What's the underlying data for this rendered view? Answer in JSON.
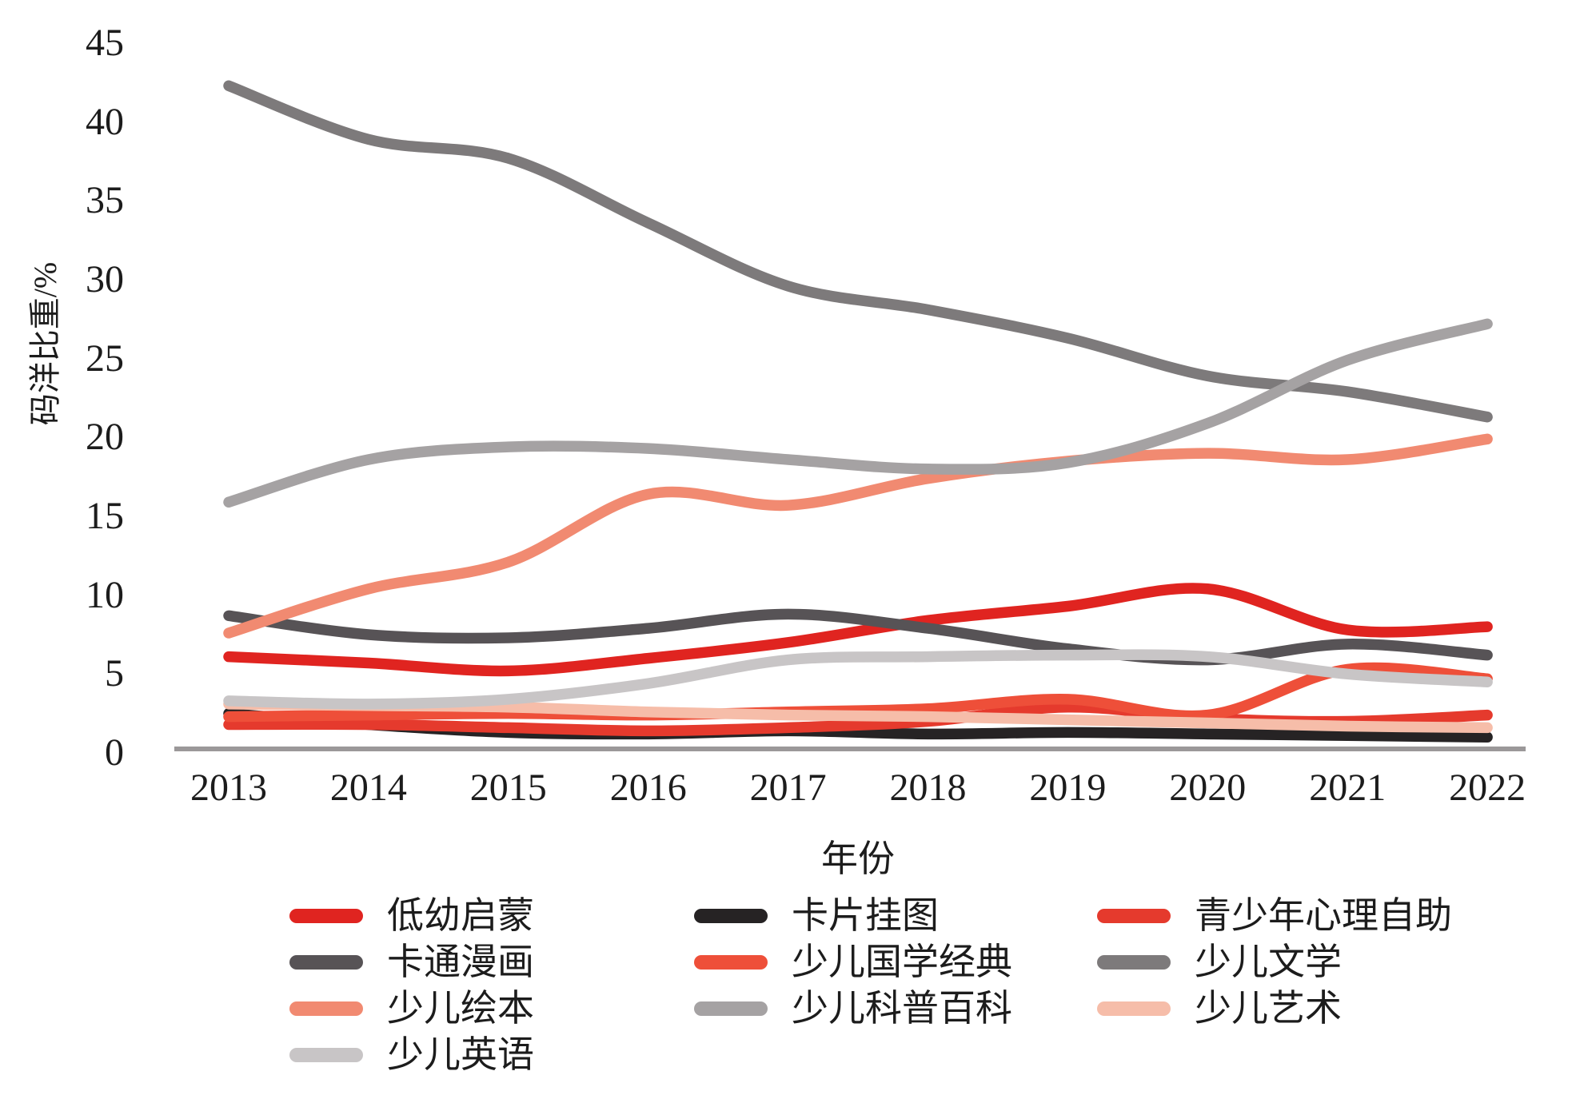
{
  "chart_data": {
    "type": "line",
    "title": "",
    "xlabel": "年份",
    "ylabel": "码洋比重/%",
    "x_categories": [
      "2013",
      "2014",
      "2015",
      "2016",
      "2017",
      "2018",
      "2019",
      "2020",
      "2021",
      "2022"
    ],
    "y_ticks": [
      0,
      5,
      10,
      15,
      20,
      25,
      30,
      35,
      40,
      45
    ],
    "ylim": [
      0,
      45
    ],
    "grid": false,
    "smooth_lines": true,
    "legend_position": "bottom",
    "axis_line_color": "#9b9899",
    "series": [
      {
        "name": "低幼启蒙",
        "color": "#e02420",
        "values": [
          6.1,
          5.7,
          5.2,
          6.0,
          7.0,
          8.4,
          9.3,
          10.4,
          7.8,
          8.0
        ]
      },
      {
        "name": "卡片挂图",
        "color": "#262324",
        "values": [
          2.5,
          1.8,
          1.3,
          1.2,
          1.4,
          1.2,
          1.3,
          1.2,
          1.1,
          1.0
        ]
      },
      {
        "name": "青少年心理自助",
        "color": "#e53a2d",
        "values": [
          1.8,
          1.8,
          1.6,
          1.4,
          1.6,
          2.0,
          2.9,
          2.2,
          2.0,
          2.4
        ]
      },
      {
        "name": "卡通漫画",
        "color": "#575356",
        "values": [
          8.7,
          7.5,
          7.3,
          7.9,
          8.8,
          7.9,
          6.6,
          5.9,
          6.9,
          6.2
        ]
      },
      {
        "name": "少儿国学经典",
        "color": "#ee4f39",
        "values": [
          2.3,
          2.4,
          2.5,
          2.4,
          2.6,
          2.8,
          3.4,
          2.4,
          5.3,
          4.7
        ]
      },
      {
        "name": "少儿文学",
        "color": "#7d7a7b",
        "values": [
          42.3,
          38.9,
          37.7,
          33.6,
          29.6,
          28.1,
          26.3,
          23.9,
          22.9,
          21.3
        ]
      },
      {
        "name": "少儿绘本",
        "color": "#f18a71",
        "values": [
          7.6,
          10.4,
          12.1,
          16.4,
          15.7,
          17.4,
          18.5,
          19.0,
          18.6,
          19.9
        ]
      },
      {
        "name": "少儿科普百科",
        "color": "#a5a2a3",
        "values": [
          15.9,
          18.6,
          19.4,
          19.3,
          18.6,
          18.0,
          18.4,
          20.9,
          24.9,
          27.2
        ]
      },
      {
        "name": "少儿艺术",
        "color": "#f6bda9",
        "values": [
          3.1,
          3.0,
          2.9,
          2.6,
          2.4,
          2.3,
          2.1,
          1.9,
          1.7,
          1.6
        ]
      },
      {
        "name": "少儿英语",
        "color": "#c8c5c6",
        "values": [
          3.3,
          3.1,
          3.4,
          4.4,
          5.9,
          6.1,
          6.2,
          6.1,
          5.0,
          4.5
        ]
      }
    ]
  }
}
